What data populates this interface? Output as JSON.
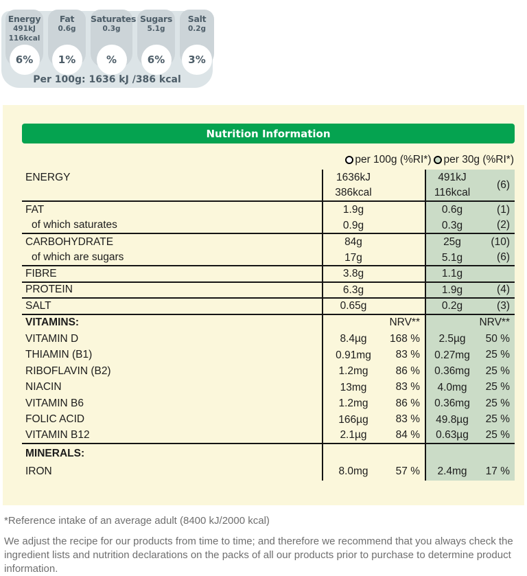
{
  "fop": {
    "badges": [
      {
        "label": "Energy",
        "lines": [
          "491kJ",
          "116kcal"
        ],
        "percent": "6%",
        "size": "normal"
      },
      {
        "label": "Fat",
        "lines": [
          "0.6g"
        ],
        "percent": "1%",
        "size": "normal"
      },
      {
        "label": "Saturates",
        "lines": [
          "0.3g"
        ],
        "percent": "%",
        "size": "wide"
      },
      {
        "label": "Sugars",
        "lines": [
          "5.1g"
        ],
        "percent": "6%",
        "size": "normal"
      },
      {
        "label": "Salt",
        "lines": [
          "0.2g"
        ],
        "percent": "3%",
        "size": "narrow"
      }
    ],
    "per100_line": "Per 100g: 1636 kJ /386 kcal"
  },
  "table": {
    "title": "Nutrition Information",
    "column_toggles": [
      {
        "label": "per 100g (%RI*)",
        "selected": false
      },
      {
        "label": "per 30g (%RI*)",
        "selected": true
      }
    ],
    "rows": [
      {
        "label": "ENERGY",
        "amt100": [
          "1636kJ",
          "386kcal"
        ],
        "nrv100": "",
        "amt30": [
          "491kJ",
          "116kcal"
        ],
        "nrv30": "(6)",
        "hline": true,
        "tall": true
      },
      {
        "label": "FAT",
        "amt100": [
          "1.9g"
        ],
        "nrv100": "",
        "amt30": [
          "0.6g"
        ],
        "nrv30": "(1)"
      },
      {
        "label": "of which saturates",
        "indent": true,
        "amt100": [
          "0.9g"
        ],
        "amt30": [
          "0.3g"
        ],
        "nrv30": "(2)",
        "hline": true
      },
      {
        "label": "CARBOHYDRATE",
        "amt100": [
          "84g"
        ],
        "amt30": [
          "25g"
        ],
        "nrv30": "(10)"
      },
      {
        "label": "of which are sugars",
        "indent": true,
        "amt100": [
          "17g"
        ],
        "amt30": [
          "5.1g"
        ],
        "nrv30": "(6)",
        "hline": true
      },
      {
        "label": "FIBRE",
        "amt100": [
          "3.8g"
        ],
        "amt30": [
          "1.1g"
        ],
        "hline": true
      },
      {
        "label": "PROTEIN",
        "amt100": [
          "6.3g"
        ],
        "amt30": [
          "1.9g"
        ],
        "nrv30": "(4)",
        "hline": true
      },
      {
        "label": "SALT",
        "amt100": [
          "0.65g"
        ],
        "amt30": [
          "0.2g"
        ],
        "nrv30": "(3)",
        "hline": true
      },
      {
        "label": "VITAMINS:",
        "bold": true,
        "nrv100": "NRV**",
        "nrv30": "NRV**"
      },
      {
        "label": "VITAMIN D",
        "amt100": [
          "8.4µg"
        ],
        "nrv100": "168 %",
        "amt30": [
          "2.5µg"
        ],
        "nrv30": "50 %"
      },
      {
        "label": "THIAMIN (B1)",
        "amt100": [
          "0.91mg"
        ],
        "nrv100": "83 %",
        "amt30": [
          "0.27mg"
        ],
        "nrv30": "25 %"
      },
      {
        "label": "RIBOFLAVIN (B2)",
        "amt100": [
          "1.2mg"
        ],
        "nrv100": "86 %",
        "amt30": [
          "0.36mg"
        ],
        "nrv30": "25 %"
      },
      {
        "label": "NIACIN",
        "amt100": [
          "13mg"
        ],
        "nrv100": "83 %",
        "amt30": [
          "4.0mg"
        ],
        "nrv30": "25 %"
      },
      {
        "label": "VITAMIN B6",
        "amt100": [
          "1.2mg"
        ],
        "nrv100": "86 %",
        "amt30": [
          "0.36mg"
        ],
        "nrv30": "25 %"
      },
      {
        "label": "FOLIC ACID",
        "amt100": [
          "166µg"
        ],
        "nrv100": "83 %",
        "amt30": [
          "49.8µg"
        ],
        "nrv30": "25 %"
      },
      {
        "label": "VITAMIN B12",
        "amt100": [
          "2.1µg"
        ],
        "nrv100": "84 %",
        "amt30": [
          "0.63µg"
        ],
        "nrv30": "25 %",
        "hline": true
      },
      {
        "label": "MINERALS:",
        "bold": true,
        "h": 28
      },
      {
        "label": "IRON",
        "amt100": [
          "8.0mg"
        ],
        "nrv100": "57 %",
        "amt30": [
          "2.4mg"
        ],
        "nrv30": "17 %",
        "h": 25
      }
    ]
  },
  "footnotes": {
    "reference": "*Reference intake of an average adult (8400 kJ/2000 kcal)",
    "disclaimer": "We adjust the recipe for our products from time to time; and therefore we recommend that you always check the ingredient lists and nutrition declarations on the packs of all our products prior to purchase to determine product information."
  },
  "colors": {
    "header_green": "#05a350",
    "selected_column_green": "#cbdcc7",
    "panel_cream": "#fbf7db",
    "badge_grey": "#ccd4d8",
    "badge_strip_grey": "#dce4e7",
    "badge_text": "#4d5d68",
    "table_text": "#1c1c1c",
    "footnote_grey": "#6e6e6e"
  }
}
